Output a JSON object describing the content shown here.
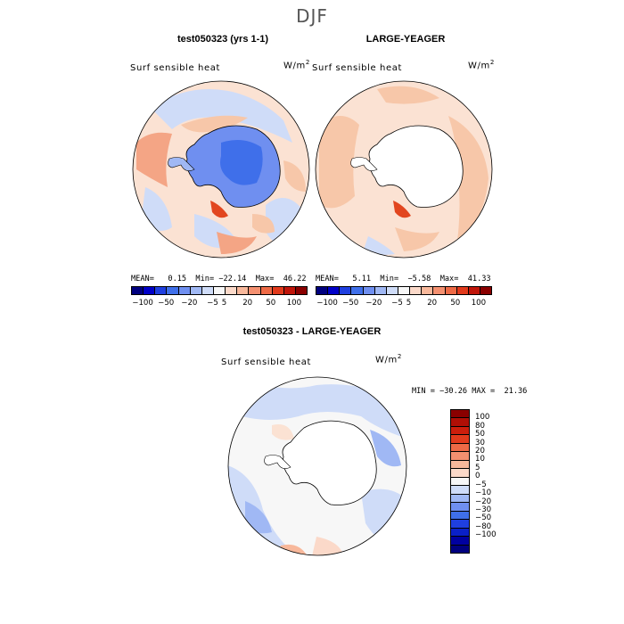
{
  "season": "DJF",
  "panels": [
    {
      "title": "test050323 (yrs 1-1)",
      "field": "Surf sensible heat",
      "units_base": "W/m",
      "units_exp": "2",
      "stats": "MEAN=   0.15  Min= −22.14  Max=  46.22",
      "ice_sheet_fill": "shaded"
    },
    {
      "title": "LARGE-YEAGER",
      "field": "Surf sensible heat",
      "units_base": "W/m",
      "units_exp": "2",
      "stats": "MEAN=   5.11  Min=  −5.58  Max=  41.33",
      "ice_sheet_fill": "white"
    },
    {
      "title": "test050323 - LARGE-YEAGER",
      "field": "Surf sensible heat",
      "units_base": "W/m",
      "units_exp": "2",
      "stats": "MIN = −30.26 MAX =  21.36",
      "ice_sheet_fill": "white"
    }
  ],
  "top_colorbar": {
    "colors": [
      "#00007f",
      "#0000c8",
      "#1f3fe0",
      "#3f6fea",
      "#6f8ff0",
      "#a0b8f4",
      "#cfdcf8",
      "#f7f7f7",
      "#fbd9c9",
      "#f8b89b",
      "#f49070",
      "#ee6a46",
      "#e23a1c",
      "#c0150a",
      "#8a0000"
    ],
    "tick_labels": [
      "−100",
      "−50",
      "−20",
      "−5",
      "5",
      "20",
      "50",
      "100"
    ],
    "tick_index": [
      1,
      3,
      5,
      7,
      8,
      10,
      12,
      14
    ]
  },
  "side_colorbar": {
    "colors_top_to_bottom": [
      "#8a0000",
      "#b00f06",
      "#cc1e0c",
      "#e23a1c",
      "#ee6a46",
      "#f49070",
      "#f8b89b",
      "#fbd9c9",
      "#f7f7f7",
      "#cfdcf8",
      "#a0b8f4",
      "#6f8ff0",
      "#3f6fea",
      "#1f3fe0",
      "#0a20c8",
      "#0000a0",
      "#00007f"
    ],
    "tick_labels": [
      "100",
      "80",
      "50",
      "30",
      "20",
      "10",
      "5",
      "0",
      "−5",
      "−10",
      "−20",
      "−30",
      "−50",
      "−80",
      "−100"
    ]
  },
  "colors": {
    "ocean_warm": "#f7c7a9",
    "ocean_light_warm": "#fbe2d3",
    "ocean_cool": "#cfdcf8",
    "ice_blue": "#6f8ff0",
    "ice_blue_dark": "#3f6fea",
    "strong_warm": "#e2461f"
  }
}
